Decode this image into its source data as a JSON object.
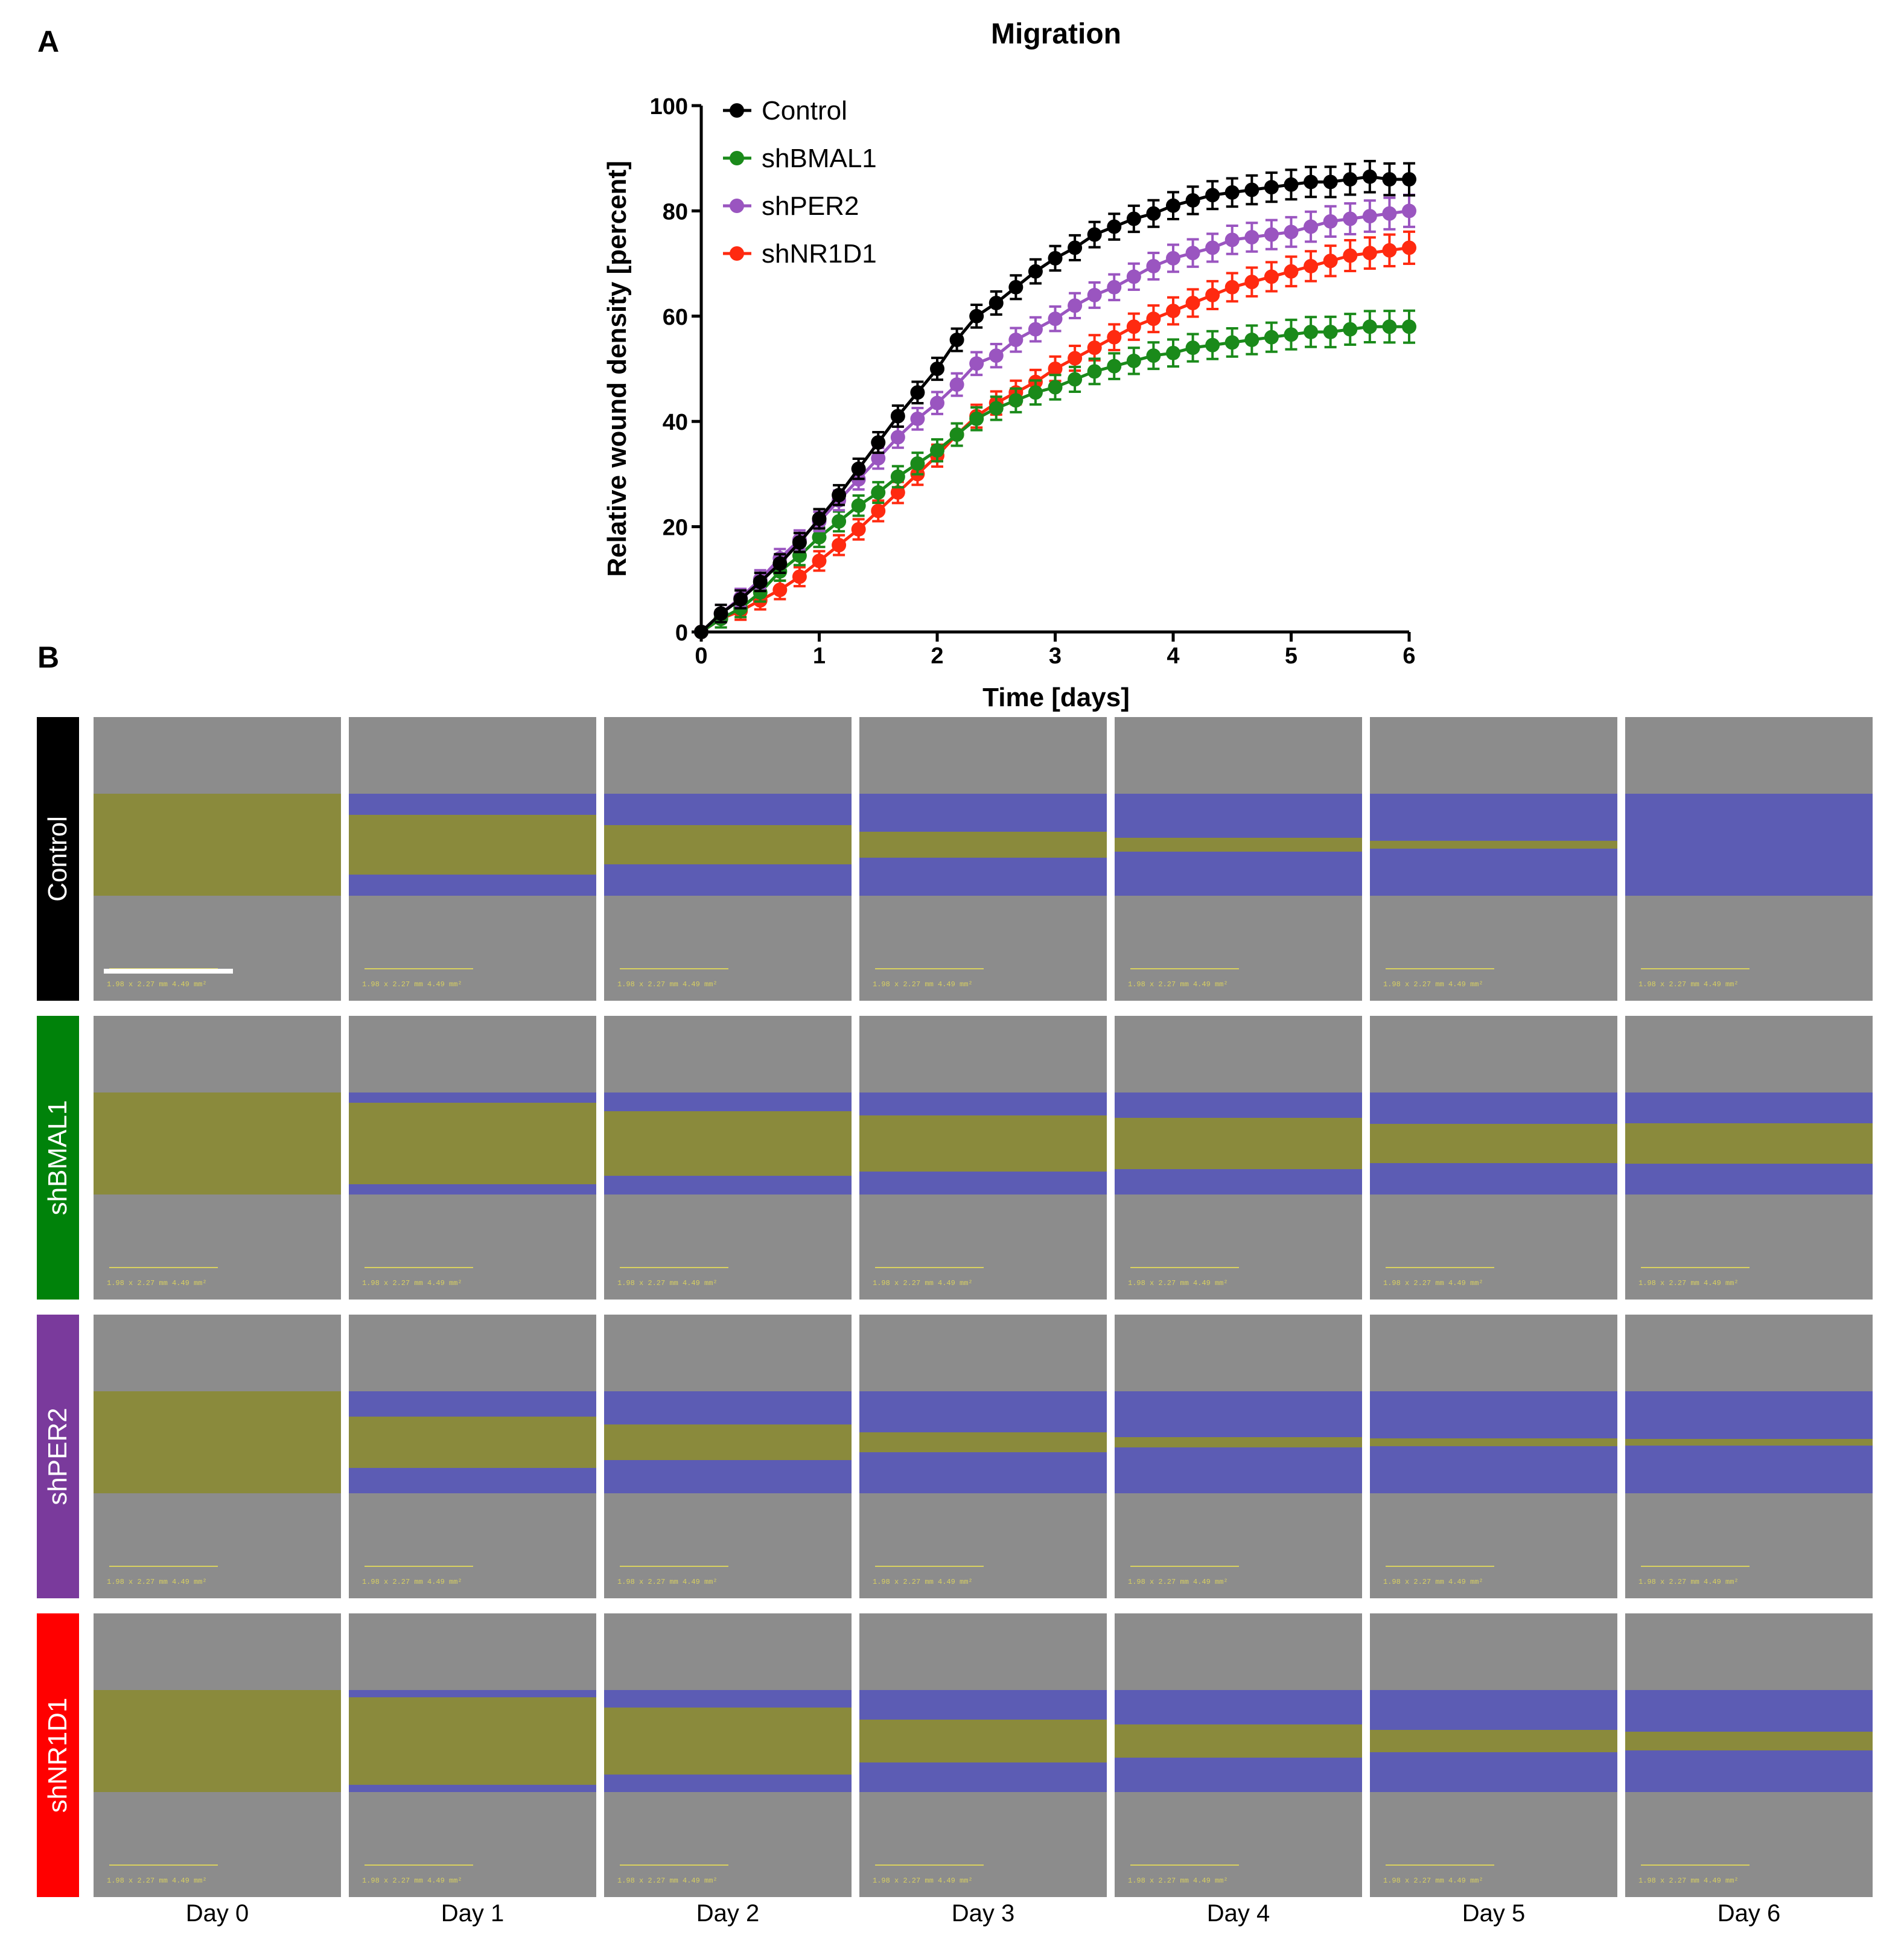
{
  "panel_labels": {
    "a": "A",
    "b": "B"
  },
  "chart_data": {
    "type": "line",
    "title": "Migration",
    "xlabel": "Time [days]",
    "ylabel": "Relative wound density [percent]",
    "xlim": [
      0,
      6
    ],
    "ylim": [
      0,
      100
    ],
    "xticks": [
      0,
      1,
      2,
      3,
      4,
      5,
      6
    ],
    "yticks": [
      0,
      20,
      40,
      60,
      80,
      100
    ],
    "legend_position": "top-left",
    "x": [
      0,
      0.1667,
      0.3333,
      0.5,
      0.6667,
      0.8333,
      1,
      1.1667,
      1.3333,
      1.5,
      1.6667,
      1.8333,
      2,
      2.1667,
      2.3333,
      2.5,
      2.6667,
      2.8333,
      3,
      3.1667,
      3.3333,
      3.5,
      3.6667,
      3.8333,
      4,
      4.1667,
      4.3333,
      4.5,
      4.6667,
      4.8333,
      5,
      5.1667,
      5.3333,
      5.5,
      5.6667,
      5.8333,
      6
    ],
    "series": [
      {
        "name": "Control",
        "color": "#000000",
        "values": [
          0,
          3.5,
          6.2,
          9.5,
          13,
          17,
          21.5,
          26,
          31,
          36,
          41,
          45.5,
          50,
          55.5,
          60,
          62.5,
          65.5,
          68.5,
          71,
          73,
          75.5,
          77,
          78.5,
          79.5,
          81,
          82,
          83,
          83.5,
          84,
          84.5,
          85,
          85.5,
          85.5,
          86,
          86.5,
          86,
          86
        ]
      },
      {
        "name": "shBMAL1",
        "color": "#1a8a1a",
        "values": [
          0,
          2.5,
          4.5,
          7.5,
          11.5,
          14.5,
          18,
          21,
          24,
          26.5,
          29.5,
          32,
          34.5,
          37.5,
          40.5,
          42.5,
          44,
          45.5,
          46.5,
          48,
          49.5,
          50.5,
          51.5,
          52.5,
          53,
          54,
          54.5,
          55,
          55.5,
          56,
          56.5,
          57,
          57,
          57.5,
          58,
          58,
          58
        ]
      },
      {
        "name": "shPER2",
        "color": "#9a55c0",
        "values": [
          0,
          3.5,
          6.5,
          10,
          14,
          17.5,
          21,
          25,
          29,
          33,
          37,
          40.5,
          43.5,
          47,
          51,
          52.5,
          55.5,
          57.5,
          59.5,
          62,
          64,
          65.5,
          67.5,
          69.5,
          71,
          72,
          73,
          74.5,
          75,
          75.5,
          76,
          77,
          78,
          78.5,
          79,
          79.5,
          80
        ]
      },
      {
        "name": "shNR1D1",
        "color": "#ff2a10",
        "values": [
          0,
          2.5,
          4,
          6,
          8,
          10.5,
          13.5,
          16.5,
          19.5,
          23,
          26.5,
          30,
          33.5,
          37.5,
          41,
          43.5,
          45.5,
          47.5,
          50,
          52,
          54,
          56,
          58,
          59.5,
          61,
          62.5,
          64,
          65.5,
          66.5,
          67.5,
          68.5,
          69.5,
          70.5,
          71.5,
          72,
          72.5,
          73
        ]
      }
    ]
  },
  "grid": {
    "rows": [
      {
        "label": "Control",
        "color": "#000000",
        "gap": [
          1,
          0.58,
          0.38,
          0.26,
          0.14,
          0.08,
          0
        ]
      },
      {
        "label": "shBMAL1",
        "color": "#00820a",
        "gap": [
          1,
          0.8,
          0.63,
          0.55,
          0.5,
          0.38,
          0.4
        ]
      },
      {
        "label": "shPER2",
        "color": "#7a3a9c",
        "gap": [
          1,
          0.5,
          0.35,
          0.2,
          0.1,
          0.08,
          0.07
        ]
      },
      {
        "label": "shNR1D1",
        "color": "#ff0000",
        "gap": [
          1,
          0.86,
          0.66,
          0.42,
          0.32,
          0.22,
          0.18
        ]
      }
    ],
    "days": [
      "Day 0",
      "Day 1",
      "Day 2",
      "Day 3",
      "Day 4",
      "Day 5",
      "Day 6"
    ],
    "scale_text": "1.98 x 2.27 mm   4.49 mm²",
    "scale_unit": "mm",
    "scale_value": "1.00",
    "wound_color": "#8a8a3c",
    "migrated_color": "#5c5cb4"
  }
}
